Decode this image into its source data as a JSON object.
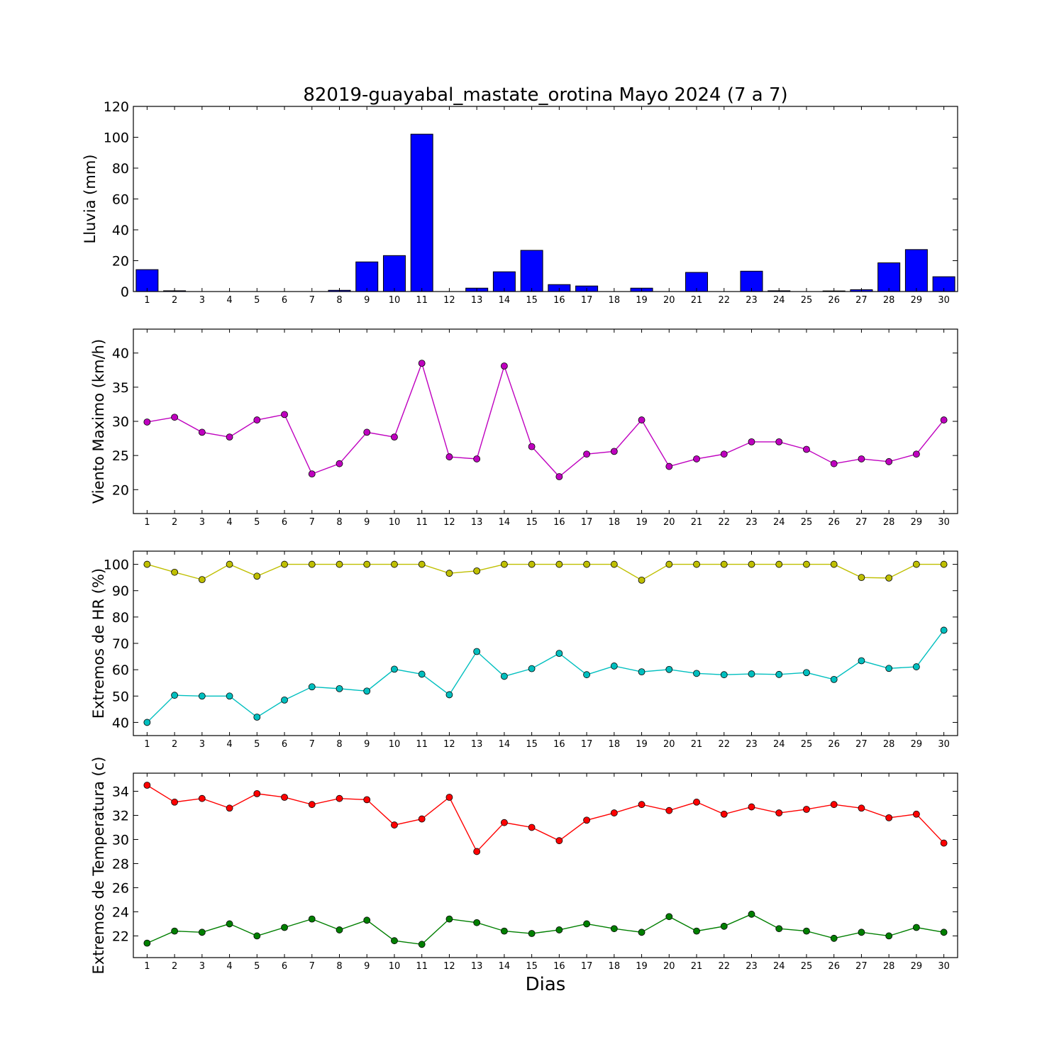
{
  "figure": {
    "title": "82019-guayabal_mastate_orotina Mayo 2024  (7 a 7)",
    "xlabel": "Dias"
  },
  "chart_data": [
    {
      "type": "bar",
      "title": "82019-guayabal_mastate_orotina Mayo 2024  (7 a 7)",
      "ylabel": "Lluvia (mm)",
      "xlabel": "",
      "ylim": [
        0,
        120
      ],
      "yticks": [
        0,
        20,
        40,
        60,
        80,
        100,
        120
      ],
      "categories": [
        "1",
        "2",
        "3",
        "4",
        "5",
        "6",
        "7",
        "8",
        "9",
        "10",
        "11",
        "12",
        "13",
        "14",
        "15",
        "16",
        "17",
        "18",
        "19",
        "20",
        "21",
        "22",
        "23",
        "24",
        "25",
        "26",
        "27",
        "28",
        "29",
        "30"
      ],
      "series": [
        {
          "color": "#0000ff",
          "values": [
            14.2,
            0.5,
            0,
            0,
            0,
            0,
            0,
            0.8,
            19.2,
            23.3,
            102,
            0,
            2.2,
            12.8,
            26.7,
            4.5,
            3.6,
            0,
            2.2,
            0,
            12.4,
            0,
            13.2,
            0.5,
            0,
            0.4,
            1.2,
            18.6,
            27.2,
            9.6
          ]
        }
      ]
    },
    {
      "type": "line",
      "ylabel": "Viento Maximo (km/h)",
      "xlabel": "",
      "ylim": [
        16.5,
        43.5
      ],
      "yticks": [
        20,
        25,
        30,
        35,
        40
      ],
      "categories": [
        "1",
        "2",
        "3",
        "4",
        "5",
        "6",
        "7",
        "8",
        "9",
        "10",
        "11",
        "12",
        "13",
        "14",
        "15",
        "16",
        "17",
        "18",
        "19",
        "20",
        "21",
        "22",
        "23",
        "24",
        "25",
        "26",
        "27",
        "28",
        "29",
        "30"
      ],
      "series": [
        {
          "color": "#bf00bf",
          "values": [
            29.9,
            30.6,
            28.4,
            27.7,
            30.2,
            31.0,
            22.3,
            23.8,
            28.4,
            27.7,
            38.5,
            24.8,
            24.5,
            38.1,
            26.3,
            21.9,
            25.2,
            25.6,
            30.2,
            23.4,
            24.5,
            25.2,
            27.0,
            27.0,
            25.9,
            23.8,
            24.5,
            24.1,
            25.2,
            30.2
          ]
        }
      ]
    },
    {
      "type": "line",
      "ylabel": "Extremos de HR (%)",
      "xlabel": "",
      "ylim": [
        35,
        105
      ],
      "yticks": [
        40,
        50,
        60,
        70,
        80,
        90,
        100
      ],
      "categories": [
        "1",
        "2",
        "3",
        "4",
        "5",
        "6",
        "7",
        "8",
        "9",
        "10",
        "11",
        "12",
        "13",
        "14",
        "15",
        "16",
        "17",
        "18",
        "19",
        "20",
        "21",
        "22",
        "23",
        "24",
        "25",
        "26",
        "27",
        "28",
        "29",
        "30"
      ],
      "series": [
        {
          "color": "#bfbf00",
          "values": [
            100,
            97,
            94.2,
            100,
            95.5,
            100,
            100,
            100,
            100,
            100,
            100,
            96.6,
            97.5,
            100,
            100,
            100,
            100,
            100,
            94,
            100,
            100,
            100,
            100,
            100,
            100,
            100,
            95,
            94.8,
            100,
            100
          ]
        },
        {
          "color": "#00bfbf",
          "values": [
            40,
            50.3,
            50,
            50,
            42,
            48.5,
            53.5,
            52.8,
            51.9,
            60.2,
            58.3,
            50.5,
            66.9,
            57.5,
            60.4,
            66.2,
            58.1,
            61.4,
            59.2,
            60.1,
            58.6,
            58.1,
            58.4,
            58.2,
            58.9,
            56.3,
            63.4,
            60.5,
            61.1,
            75
          ]
        }
      ]
    },
    {
      "type": "line",
      "ylabel": "Extremos de Temperatura (c)",
      "xlabel": "Dias",
      "ylim": [
        20.2,
        35.5
      ],
      "yticks": [
        22,
        24,
        26,
        28,
        30,
        32,
        34
      ],
      "categories": [
        "1",
        "2",
        "3",
        "4",
        "5",
        "6",
        "7",
        "8",
        "9",
        "10",
        "11",
        "12",
        "13",
        "14",
        "15",
        "16",
        "17",
        "18",
        "19",
        "20",
        "21",
        "22",
        "23",
        "24",
        "25",
        "26",
        "27",
        "28",
        "29",
        "30"
      ],
      "series": [
        {
          "color": "#ff0000",
          "values": [
            34.5,
            33.1,
            33.4,
            32.6,
            33.8,
            33.5,
            32.9,
            33.4,
            33.3,
            31.2,
            31.7,
            33.5,
            29.0,
            31.4,
            31.0,
            29.9,
            31.6,
            32.2,
            32.9,
            32.4,
            33.1,
            32.1,
            32.7,
            32.2,
            32.5,
            32.9,
            32.6,
            31.8,
            32.1,
            29.7
          ]
        },
        {
          "color": "#007f00",
          "values": [
            21.4,
            22.4,
            22.3,
            23.0,
            22.0,
            22.7,
            23.4,
            22.5,
            23.3,
            21.6,
            21.3,
            23.4,
            23.1,
            22.4,
            22.2,
            22.5,
            23.0,
            22.6,
            22.3,
            23.6,
            22.4,
            22.8,
            23.8,
            22.6,
            22.4,
            21.8,
            22.3,
            22.0,
            22.7,
            22.3
          ]
        }
      ]
    }
  ]
}
